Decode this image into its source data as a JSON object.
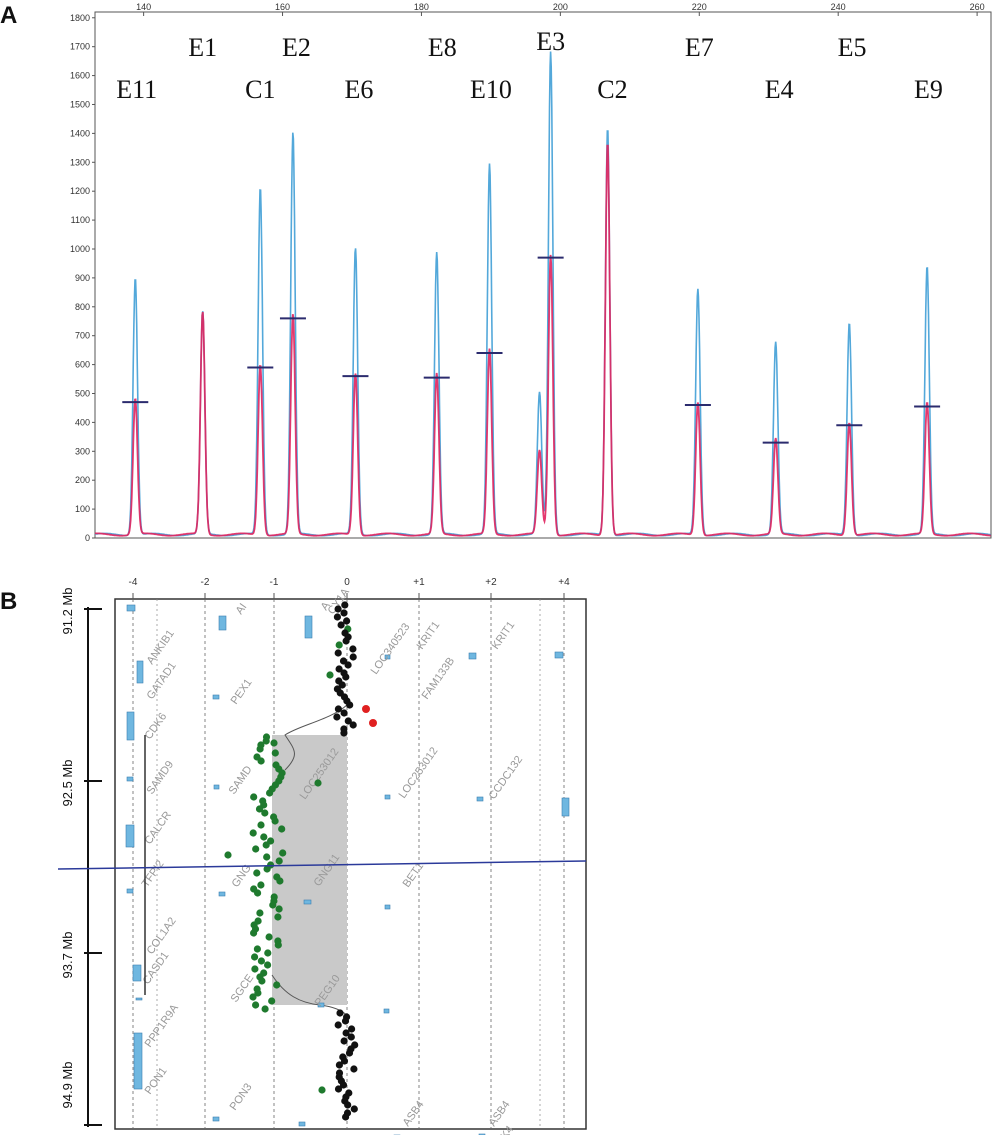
{
  "panel_a": {
    "letter": "A",
    "chart_data": {
      "type": "line",
      "title": "",
      "xlabel": "",
      "ylabel": "",
      "xlim": [
        133,
        262
      ],
      "ylim": [
        0,
        1820
      ],
      "x_ticks": [
        140,
        160,
        180,
        200,
        220,
        240,
        260
      ],
      "y_ticks": [
        0,
        100,
        200,
        300,
        400,
        500,
        600,
        700,
        800,
        900,
        1000,
        1100,
        1200,
        1300,
        1400,
        1500,
        1600,
        1700,
        1800
      ],
      "series": [
        {
          "color": "#4aa3d8",
          "peaks": [
            {
              "x": 138.8,
              "y": 890
            },
            {
              "x": 148.5,
              "y": 770
            },
            {
              "x": 156.8,
              "y": 1200
            },
            {
              "x": 161.5,
              "y": 1390
            },
            {
              "x": 170.5,
              "y": 990
            },
            {
              "x": 182.2,
              "y": 975
            },
            {
              "x": 189.8,
              "y": 1280
            },
            {
              "x": 197.0,
              "y": 490
            },
            {
              "x": 198.6,
              "y": 1670
            },
            {
              "x": 206.8,
              "y": 1410
            },
            {
              "x": 219.8,
              "y": 850
            },
            {
              "x": 231.0,
              "y": 665
            },
            {
              "x": 241.6,
              "y": 735
            },
            {
              "x": 252.8,
              "y": 925
            }
          ]
        },
        {
          "color": "#e0245e",
          "peaks": [
            {
              "x": 138.8,
              "y": 470
            },
            {
              "x": 148.5,
              "y": 770
            },
            {
              "x": 156.8,
              "y": 590
            },
            {
              "x": 161.5,
              "y": 760
            },
            {
              "x": 170.5,
              "y": 560
            },
            {
              "x": 182.2,
              "y": 555
            },
            {
              "x": 189.8,
              "y": 640
            },
            {
              "x": 197.0,
              "y": 290
            },
            {
              "x": 198.6,
              "y": 970
            },
            {
              "x": 206.8,
              "y": 1360
            },
            {
              "x": 219.8,
              "y": 460
            },
            {
              "x": 231.0,
              "y": 330
            },
            {
              "x": 241.6,
              "y": 390
            },
            {
              "x": 252.8,
              "y": 455
            }
          ]
        }
      ],
      "reference_marks": [
        {
          "x": 138.8,
          "y": 470
        },
        {
          "x": 156.8,
          "y": 590
        },
        {
          "x": 161.5,
          "y": 760
        },
        {
          "x": 170.5,
          "y": 560
        },
        {
          "x": 182.2,
          "y": 555
        },
        {
          "x": 189.8,
          "y": 640
        },
        {
          "x": 198.6,
          "y": 970
        },
        {
          "x": 219.8,
          "y": 460
        },
        {
          "x": 231.0,
          "y": 330
        },
        {
          "x": 241.6,
          "y": 390
        },
        {
          "x": 252.8,
          "y": 455
        }
      ],
      "annotations": [
        {
          "text": "E11",
          "x": 139,
          "row": 3
        },
        {
          "text": "E1",
          "x": 148.5,
          "row": 1
        },
        {
          "text": "C1",
          "x": 156.8,
          "row": 3
        },
        {
          "text": "E2",
          "x": 162,
          "row": 1
        },
        {
          "text": "E6",
          "x": 171,
          "row": 3
        },
        {
          "text": "E8",
          "x": 183,
          "row": 1
        },
        {
          "text": "E10",
          "x": 190,
          "row": 3
        },
        {
          "text": "E3",
          "x": 198.6,
          "row": 0
        },
        {
          "text": "C2",
          "x": 207.5,
          "row": 3
        },
        {
          "text": "E7",
          "x": 220,
          "row": 1
        },
        {
          "text": "E4",
          "x": 231.5,
          "row": 3
        },
        {
          "text": "E5",
          "x": 242,
          "row": 1
        },
        {
          "text": "E9",
          "x": 253,
          "row": 3
        }
      ]
    }
  },
  "panel_b": {
    "letter": "B",
    "chart_data": {
      "type": "scatter",
      "title": "",
      "xlabel": "",
      "ylabel": "",
      "x_ticks": [
        "-4",
        "-2",
        "-1",
        "0",
        "+1",
        "+2",
        "+4"
      ],
      "mb_labels": [
        "91.2 Mb",
        "92.5 Mb",
        "93.7 Mb",
        "94.9 Mb"
      ],
      "gene_labels": [
        "ANKIB1",
        "AI",
        "A",
        "CY1A",
        "LOC340523",
        "KRIT1",
        "KRIT1",
        "GATAD1",
        "PEX1",
        "FAM133B",
        "CDK6",
        "LOC253012",
        "LOC253012",
        "CCDC132",
        "SAMD9",
        "SAMD",
        "CALCR",
        "TFPI2",
        "GNG",
        "GNG11",
        "BET1",
        "COL1A2",
        "CASD1",
        "SGCE",
        "PEG10",
        "PPP1R9A",
        "PON1",
        "PON3",
        "ASB4",
        "ASB4",
        "K4"
      ],
      "deletion_region": {
        "from_mb": 91.95,
        "to_mb": 93.95,
        "color": "#c9c9c9"
      },
      "point_colors": {
        "normal": "#111111",
        "deleted": "#1f7a2e",
        "gain": "#e02020"
      },
      "feature_color": "#6fb7e0",
      "cursor_color": "#2b3a9a"
    }
  }
}
